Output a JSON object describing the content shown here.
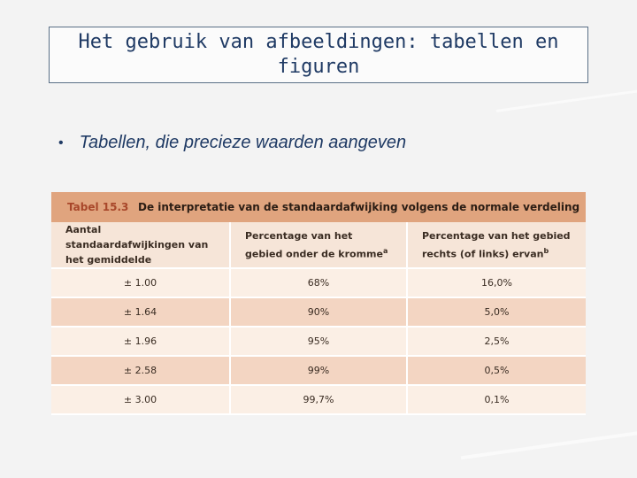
{
  "slide": {
    "title": "Het gebruik van afbeeldingen: tabellen en figuren",
    "bullet": "Tabellen, die precieze waarden aangeven"
  },
  "table": {
    "number": "Tabel 15.3",
    "caption": "De interpretatie van de standaardafwijking volgens de normale verdeling",
    "headers": [
      "Aantal standaardafwijkingen van het gemiddelde",
      "Percentage van het gebied onder de kromme",
      "Percentage van het gebied rechts (of links) ervan"
    ],
    "header_sups": [
      "",
      "a",
      "b"
    ],
    "rows": [
      [
        "± 1.00",
        "68%",
        "16,0%"
      ],
      [
        "± 1.64",
        "90%",
        "5,0%"
      ],
      [
        "± 1.96",
        "95%",
        "2,5%"
      ],
      [
        "± 2.58",
        "99%",
        "0,5%"
      ],
      [
        "± 3.00",
        "99,7%",
        "0,1%"
      ]
    ]
  },
  "colors": {
    "title_text": "#1f3a64",
    "table_title_bar": "#e0a47e",
    "table_number": "#a8472a",
    "row_light": "#fbefe5",
    "row_dark": "#f3d5c2"
  }
}
